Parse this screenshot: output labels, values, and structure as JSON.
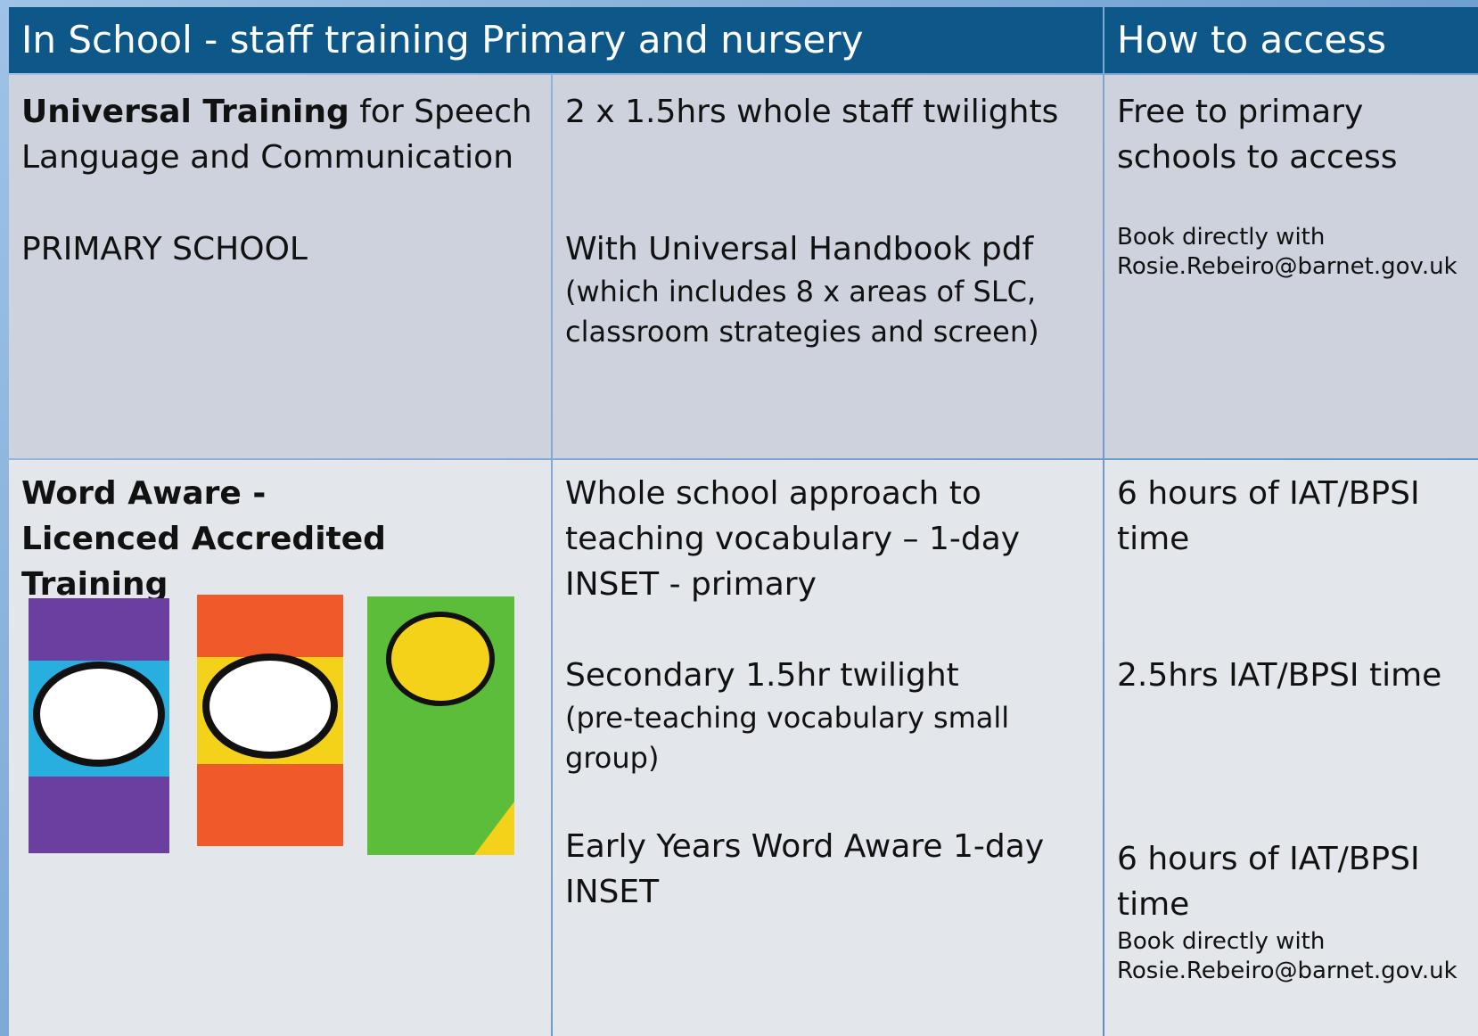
{
  "header": {
    "title": "In School - staff training Primary and nursery",
    "access": "How to access"
  },
  "rows": [
    {
      "training": {
        "bold": "Universal Training",
        "text": "for Speech Language and Communication",
        "note": "PRIMARY SCHOOL"
      },
      "details": [
        {
          "main": "2 x 1.5hrs whole staff twilights"
        },
        {
          "main": "With Universal Handbook pdf",
          "sub": "(which includes 8 x areas of SLC, classroom strategies and screen)"
        }
      ],
      "access": {
        "main": "Free to primary schools to access",
        "small": [
          "Book directly with",
          "Rosie.Rebeiro@barnet.gov.uk"
        ]
      }
    },
    {
      "training": {
        "bold": "Word Aware - Licenced Accredited  Training"
      },
      "details": [
        {
          "main": "Whole school approach to teaching vocabulary – 1-day INSET - primary"
        },
        {
          "main": "Secondary 1.5hr twilight",
          "sub": "(pre-teaching vocabulary small group)"
        },
        {
          "main": "Early Years Word Aware  1-day INSET"
        }
      ],
      "access": [
        {
          "main": "6 hours of IAT/BPSI time"
        },
        {
          "main": "2.5hrs IAT/BPSI time"
        },
        {
          "main": "6 hours of IAT/BPSI time",
          "small": [
            "Book directly with",
            "Rosie.Rebeiro@barnet.gov.uk"
          ]
        }
      ]
    }
  ]
}
